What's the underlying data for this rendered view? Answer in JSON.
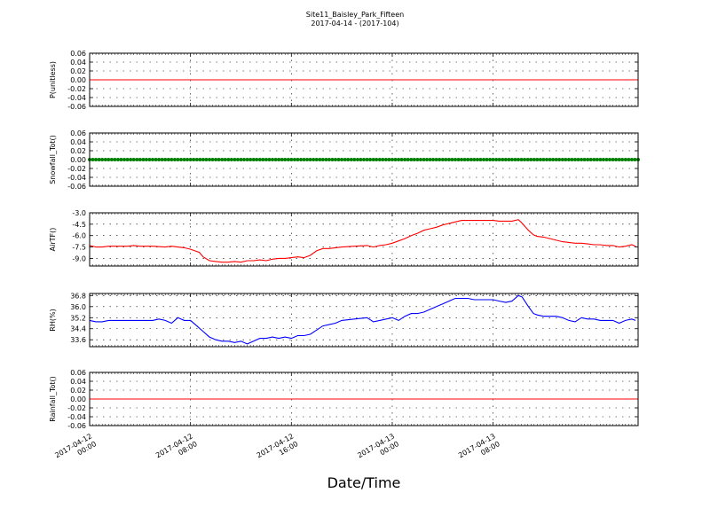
{
  "figure": {
    "title_line1": "Site11_Baisley_Park_Fifteen",
    "title_line2": "2017-04-14 - (2017-104)",
    "xlabel": "Date/Time"
  },
  "chart_data": [
    {
      "type": "line",
      "ylabel": "P(unitless)",
      "ylim": [
        -0.06,
        0.06
      ],
      "yticks": [
        "0.06",
        "0.04",
        "0.02",
        "0.00",
        "-0.02",
        "-0.04",
        "-0.06"
      ],
      "grid": true,
      "series": [
        {
          "color": "#ff0000",
          "marker": "none",
          "constant": 0.0
        }
      ]
    },
    {
      "type": "line",
      "ylabel": "Snowfall_Tot()",
      "ylim": [
        -0.06,
        0.06
      ],
      "yticks": [
        "0.06",
        "0.04",
        "0.02",
        "0.00",
        "-0.02",
        "-0.04",
        "-0.06"
      ],
      "grid": true,
      "series": [
        {
          "color": "#008000",
          "marker": "dot",
          "constant": 0.0
        }
      ]
    },
    {
      "type": "line",
      "ylabel": "AirTF()",
      "ylim": [
        -10.0,
        -3.0
      ],
      "yticks": [
        "-3.0",
        "-4.5",
        "-6.0",
        "-7.5",
        "-9.0"
      ],
      "grid": true,
      "series": [
        {
          "color": "#ff0000",
          "marker": "none",
          "points": [
            [
              0,
              -7.3
            ],
            [
              0.5,
              -7.5
            ],
            [
              1,
              -7.5
            ],
            [
              1.5,
              -7.4
            ],
            [
              2,
              -7.4
            ],
            [
              3,
              -7.4
            ],
            [
              3.5,
              -7.3
            ],
            [
              4,
              -7.4
            ],
            [
              5,
              -7.4
            ],
            [
              6,
              -7.5
            ],
            [
              6.5,
              -7.4
            ],
            [
              7,
              -7.5
            ],
            [
              7.5,
              -7.6
            ],
            [
              8,
              -7.8
            ],
            [
              8.7,
              -8.2
            ],
            [
              9,
              -8.8
            ],
            [
              9.5,
              -9.3
            ],
            [
              10,
              -9.4
            ],
            [
              10.5,
              -9.5
            ],
            [
              11,
              -9.5
            ],
            [
              11.5,
              -9.4
            ],
            [
              12,
              -9.5
            ],
            [
              12.5,
              -9.3
            ],
            [
              13,
              -9.3
            ],
            [
              13.5,
              -9.2
            ],
            [
              14,
              -9.3
            ],
            [
              14.5,
              -9.1
            ],
            [
              15,
              -9.0
            ],
            [
              15.5,
              -9.0
            ],
            [
              16,
              -8.9
            ],
            [
              16.5,
              -8.8
            ],
            [
              17,
              -8.9
            ],
            [
              17.5,
              -8.6
            ],
            [
              18,
              -8.0
            ],
            [
              18.5,
              -7.7
            ],
            [
              19,
              -7.7
            ],
            [
              19.5,
              -7.6
            ],
            [
              20,
              -7.5
            ],
            [
              21,
              -7.4
            ],
            [
              22,
              -7.3
            ],
            [
              22.5,
              -7.5
            ],
            [
              23,
              -7.3
            ],
            [
              23.5,
              -7.2
            ],
            [
              24,
              -7.0
            ],
            [
              24.5,
              -6.7
            ],
            [
              25,
              -6.4
            ],
            [
              25.5,
              -6.0
            ],
            [
              26,
              -5.7
            ],
            [
              26.5,
              -5.3
            ],
            [
              27,
              -5.1
            ],
            [
              27.5,
              -4.9
            ],
            [
              28,
              -4.6
            ],
            [
              28.5,
              -4.4
            ],
            [
              29,
              -4.2
            ],
            [
              29.5,
              -4.0
            ],
            [
              30,
              -4.0
            ],
            [
              31,
              -4.0
            ],
            [
              32,
              -4.0
            ],
            [
              32.5,
              -4.1
            ],
            [
              33,
              -4.1
            ],
            [
              33.5,
              -4.1
            ],
            [
              34,
              -3.9
            ],
            [
              34.2,
              -4.2
            ],
            [
              34.8,
              -5.3
            ],
            [
              35.2,
              -5.9
            ],
            [
              35.5,
              -6.1
            ],
            [
              36,
              -6.2
            ],
            [
              36.5,
              -6.4
            ],
            [
              37,
              -6.6
            ],
            [
              37.5,
              -6.8
            ],
            [
              38,
              -6.9
            ],
            [
              38.5,
              -7.0
            ],
            [
              39,
              -7.0
            ],
            [
              39.5,
              -7.1
            ],
            [
              40,
              -7.2
            ],
            [
              40.5,
              -7.2
            ],
            [
              41,
              -7.3
            ],
            [
              41.5,
              -7.3
            ],
            [
              42,
              -7.5
            ],
            [
              42.5,
              -7.4
            ],
            [
              43,
              -7.2
            ],
            [
              43.3,
              -7.4
            ]
          ]
        }
      ]
    },
    {
      "type": "line",
      "ylabel": "RH(%)",
      "ylim": [
        33.1,
        36.95
      ],
      "yticks": [
        "36.8",
        "36.0",
        "35.2",
        "34.4",
        "33.6"
      ],
      "grid": true,
      "series": [
        {
          "color": "#0000ff",
          "marker": "none",
          "points": [
            [
              0,
              35.0
            ],
            [
              0.5,
              34.9
            ],
            [
              1,
              34.9
            ],
            [
              1.5,
              35.0
            ],
            [
              2,
              35.0
            ],
            [
              3,
              35.0
            ],
            [
              3.5,
              35.0
            ],
            [
              4,
              35.0
            ],
            [
              5,
              35.0
            ],
            [
              5.5,
              35.1
            ],
            [
              6,
              35.0
            ],
            [
              6.5,
              34.8
            ],
            [
              7,
              35.2
            ],
            [
              7.5,
              35.0
            ],
            [
              8,
              35.0
            ],
            [
              8.5,
              34.6
            ],
            [
              9,
              34.2
            ],
            [
              9.5,
              33.8
            ],
            [
              10,
              33.6
            ],
            [
              10.5,
              33.5
            ],
            [
              11,
              33.5
            ],
            [
              11.5,
              33.4
            ],
            [
              12,
              33.5
            ],
            [
              12.5,
              33.3
            ],
            [
              13,
              33.5
            ],
            [
              13.5,
              33.7
            ],
            [
              14,
              33.7
            ],
            [
              14.5,
              33.8
            ],
            [
              15,
              33.7
            ],
            [
              15.5,
              33.8
            ],
            [
              16,
              33.7
            ],
            [
              16.5,
              33.9
            ],
            [
              17,
              33.9
            ],
            [
              17.5,
              34.0
            ],
            [
              18,
              34.3
            ],
            [
              18.5,
              34.6
            ],
            [
              19,
              34.7
            ],
            [
              19.5,
              34.8
            ],
            [
              20,
              35.0
            ],
            [
              21,
              35.1
            ],
            [
              22,
              35.2
            ],
            [
              22.5,
              34.9
            ],
            [
              23,
              35.0
            ],
            [
              24,
              35.2
            ],
            [
              24.5,
              35.0
            ],
            [
              25,
              35.3
            ],
            [
              25.5,
              35.5
            ],
            [
              26,
              35.5
            ],
            [
              26.5,
              35.6
            ],
            [
              27,
              35.8
            ],
            [
              27.5,
              36.0
            ],
            [
              28,
              36.2
            ],
            [
              28.5,
              36.4
            ],
            [
              29,
              36.6
            ],
            [
              29.5,
              36.6
            ],
            [
              30,
              36.6
            ],
            [
              30.5,
              36.5
            ],
            [
              31,
              36.5
            ],
            [
              32,
              36.5
            ],
            [
              32.5,
              36.4
            ],
            [
              33,
              36.3
            ],
            [
              33.5,
              36.4
            ],
            [
              34,
              36.8
            ],
            [
              34.3,
              36.7
            ],
            [
              34.8,
              36.0
            ],
            [
              35.2,
              35.5
            ],
            [
              35.5,
              35.4
            ],
            [
              36,
              35.3
            ],
            [
              37,
              35.3
            ],
            [
              37.5,
              35.2
            ],
            [
              38,
              35.0
            ],
            [
              38.5,
              34.9
            ],
            [
              39,
              35.2
            ],
            [
              39.5,
              35.1
            ],
            [
              40,
              35.1
            ],
            [
              40.5,
              35.0
            ],
            [
              41,
              35.0
            ],
            [
              41.5,
              35.0
            ],
            [
              42,
              34.8
            ],
            [
              42.5,
              35.0
            ],
            [
              43,
              35.1
            ],
            [
              43.3,
              35.0
            ]
          ]
        }
      ]
    },
    {
      "type": "line",
      "ylabel": "Rainfall_Tot()",
      "ylim": [
        -0.06,
        0.06
      ],
      "yticks": [
        "0.06",
        "0.04",
        "0.02",
        "0.00",
        "-0.02",
        "-0.04",
        "-0.06"
      ],
      "grid": true,
      "series": [
        {
          "color": "#ff0000",
          "marker": "none",
          "constant": 0.0
        }
      ]
    }
  ],
  "x_axis": {
    "unit": "hours since 2017-04-12 00:00",
    "range": [
      0,
      43.5
    ],
    "major_ticks": [
      {
        "hour": 0,
        "line1": "2017-04-12",
        "line2": "00:00"
      },
      {
        "hour": 8,
        "line1": "2017-04-12",
        "line2": "08:00"
      },
      {
        "hour": 16,
        "line1": "2017-04-12",
        "line2": "16:00"
      },
      {
        "hour": 24,
        "line1": "2017-04-13",
        "line2": "00:00"
      },
      {
        "hour": 32,
        "line1": "2017-04-13",
        "line2": "08:00"
      }
    ]
  }
}
